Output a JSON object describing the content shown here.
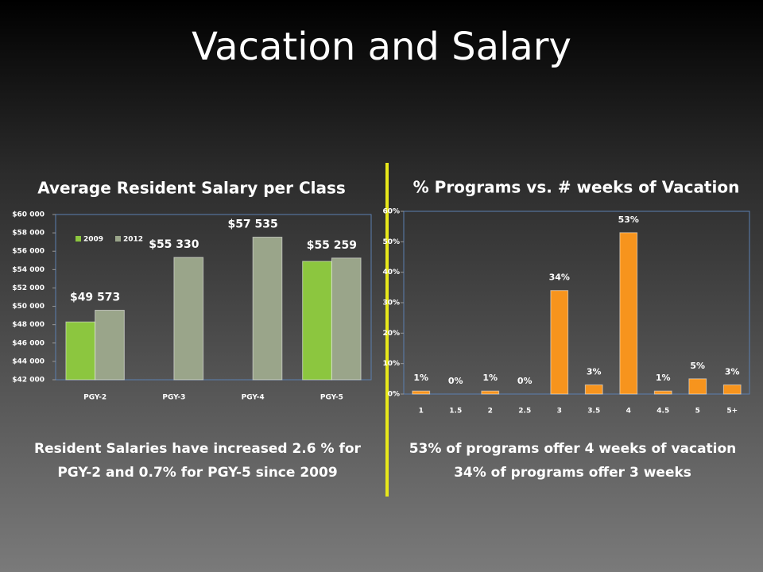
{
  "title": "Vacation and Salary",
  "chart_data": [
    {
      "type": "bar",
      "title": "Average Resident Salary per Class",
      "categories": [
        "PGY-2",
        "PGY-3",
        "PGY-4",
        "PGY-5"
      ],
      "series": [
        {
          "name": "2009",
          "color": "#8cc63f",
          "values": [
            48300,
            null,
            null,
            54900
          ]
        },
        {
          "name": "2012",
          "color": "#9aa58a",
          "values": [
            49573,
            55330,
            57535,
            55259
          ],
          "value_labels": [
            "$49 573",
            "$55 330",
            "$57 535",
            "$55 259"
          ]
        }
      ],
      "ylim": [
        42000,
        60000
      ],
      "yticks": [
        {
          "value": 42000,
          "label": "$42 000"
        },
        {
          "value": 44000,
          "label": "$44 000"
        },
        {
          "value": 46000,
          "label": "$46 000"
        },
        {
          "value": 48000,
          "label": "$48 000"
        },
        {
          "value": 50000,
          "label": "$50 000"
        },
        {
          "value": 52000,
          "label": "$52 000"
        },
        {
          "value": 54000,
          "label": "$54 000"
        },
        {
          "value": 56000,
          "label": "$56 000"
        },
        {
          "value": 58000,
          "label": "$58 000"
        },
        {
          "value": 60000,
          "label": "$60 000"
        }
      ],
      "legend": "upper left",
      "caption": [
        "Resident Salaries have increased 2.6 % for",
        "PGY-2 and 0.7% for PGY-5 since 2009"
      ]
    },
    {
      "type": "bar",
      "title": "% Programs vs. # weeks of Vacation",
      "categories": [
        "1",
        "1.5",
        "2",
        "2.5",
        "3",
        "3.5",
        "4",
        "4.5",
        "5",
        "5+"
      ],
      "values": [
        1,
        0,
        1,
        0,
        34,
        3,
        53,
        1,
        5,
        3
      ],
      "value_labels": [
        "1%",
        "0%",
        "1%",
        "0%",
        "34%",
        "3%",
        "53%",
        "1%",
        "5%",
        "3%"
      ],
      "color": "#f7941d",
      "ylim": [
        0,
        60
      ],
      "yticks": [
        {
          "value": 0,
          "label": "0%"
        },
        {
          "value": 10,
          "label": "10%"
        },
        {
          "value": 20,
          "label": "20%"
        },
        {
          "value": 30,
          "label": "30%"
        },
        {
          "value": 40,
          "label": "40%"
        },
        {
          "value": 50,
          "label": "50%"
        },
        {
          "value": 60,
          "label": "60%"
        }
      ],
      "caption": [
        "53% of programs offer 4 weeks of vacation",
        "34% of programs offer 3 weeks"
      ]
    }
  ]
}
